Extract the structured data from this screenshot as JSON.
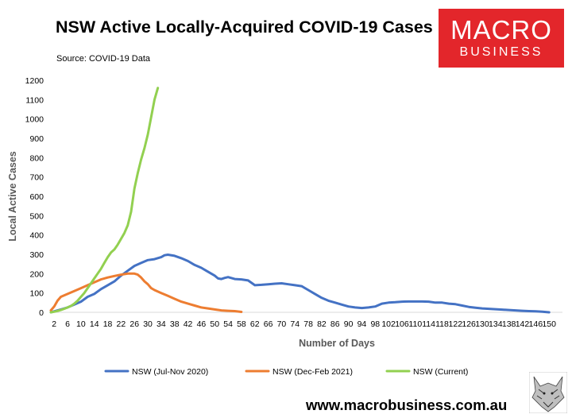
{
  "header": {
    "title": "NSW Active Locally-Acquired COVID-19 Cases",
    "source": "Source: COVID-19 Data"
  },
  "logo": {
    "line1": "MACRO",
    "line2": "BUSINESS"
  },
  "footer": {
    "url": "www.macrobusiness.com.au"
  },
  "colors": {
    "blue": "#4472c4",
    "orange": "#ed7d31",
    "green": "#92d050",
    "logo_red": "#e3262b"
  },
  "chart_data": {
    "type": "line",
    "title": "NSW Active Locally-Acquired COVID-19 Cases",
    "xlabel": "Number of Days",
    "ylabel": "Local Active Cases",
    "ylim": [
      0,
      1200
    ],
    "yticks": [
      0,
      100,
      200,
      300,
      400,
      500,
      600,
      700,
      800,
      900,
      1000,
      1100,
      1200
    ],
    "xlim": [
      1,
      154
    ],
    "xticks": [
      "2",
      "6",
      "10",
      "14",
      "18",
      "22",
      "26",
      "30",
      "34",
      "38",
      "42",
      "46",
      "50",
      "54",
      "58",
      "62",
      "66",
      "70",
      "74",
      "78",
      "82",
      "86",
      "90",
      "94",
      "98",
      "102",
      "106",
      "110",
      "114",
      "118",
      "122",
      "126",
      "130",
      "134",
      "138",
      "142",
      "146",
      "150"
    ],
    "grid": false,
    "legend": "bottom",
    "series": [
      {
        "name": "NSW (Jul-Nov 2020)",
        "color": "#4472c4",
        "points": [
          [
            1,
            0
          ],
          [
            2,
            5
          ],
          [
            4,
            15
          ],
          [
            6,
            25
          ],
          [
            8,
            40
          ],
          [
            10,
            55
          ],
          [
            12,
            80
          ],
          [
            14,
            95
          ],
          [
            16,
            120
          ],
          [
            18,
            140
          ],
          [
            20,
            160
          ],
          [
            22,
            190
          ],
          [
            24,
            215
          ],
          [
            26,
            240
          ],
          [
            28,
            255
          ],
          [
            30,
            270
          ],
          [
            32,
            275
          ],
          [
            34,
            285
          ],
          [
            35,
            295
          ],
          [
            36,
            298
          ],
          [
            38,
            292
          ],
          [
            40,
            280
          ],
          [
            42,
            265
          ],
          [
            44,
            245
          ],
          [
            46,
            230
          ],
          [
            48,
            210
          ],
          [
            50,
            190
          ],
          [
            51,
            175
          ],
          [
            52,
            172
          ],
          [
            53,
            178
          ],
          [
            54,
            182
          ],
          [
            56,
            172
          ],
          [
            58,
            170
          ],
          [
            60,
            165
          ],
          [
            62,
            140
          ],
          [
            64,
            142
          ],
          [
            66,
            145
          ],
          [
            68,
            148
          ],
          [
            70,
            150
          ],
          [
            72,
            145
          ],
          [
            74,
            140
          ],
          [
            76,
            135
          ],
          [
            78,
            115
          ],
          [
            80,
            95
          ],
          [
            82,
            75
          ],
          [
            84,
            60
          ],
          [
            86,
            50
          ],
          [
            88,
            40
          ],
          [
            90,
            30
          ],
          [
            92,
            25
          ],
          [
            94,
            22
          ],
          [
            96,
            25
          ],
          [
            98,
            30
          ],
          [
            100,
            45
          ],
          [
            102,
            50
          ],
          [
            104,
            52
          ],
          [
            106,
            55
          ],
          [
            108,
            56
          ],
          [
            110,
            56
          ],
          [
            112,
            56
          ],
          [
            114,
            55
          ],
          [
            116,
            50
          ],
          [
            118,
            50
          ],
          [
            120,
            45
          ],
          [
            122,
            42
          ],
          [
            124,
            35
          ],
          [
            126,
            28
          ],
          [
            128,
            24
          ],
          [
            130,
            20
          ],
          [
            132,
            18
          ],
          [
            134,
            16
          ],
          [
            136,
            14
          ],
          [
            138,
            12
          ],
          [
            140,
            10
          ],
          [
            142,
            8
          ],
          [
            144,
            6
          ],
          [
            146,
            5
          ],
          [
            148,
            3
          ],
          [
            150,
            0
          ]
        ]
      },
      {
        "name": "NSW (Dec-Feb 2021)",
        "color": "#ed7d31",
        "points": [
          [
            1,
            10
          ],
          [
            2,
            30
          ],
          [
            3,
            60
          ],
          [
            4,
            80
          ],
          [
            6,
            95
          ],
          [
            8,
            110
          ],
          [
            10,
            125
          ],
          [
            12,
            140
          ],
          [
            14,
            155
          ],
          [
            16,
            170
          ],
          [
            18,
            180
          ],
          [
            20,
            188
          ],
          [
            22,
            195
          ],
          [
            24,
            200
          ],
          [
            26,
            200
          ],
          [
            27,
            195
          ],
          [
            28,
            180
          ],
          [
            29,
            160
          ],
          [
            30,
            145
          ],
          [
            31,
            125
          ],
          [
            32,
            115
          ],
          [
            34,
            100
          ],
          [
            36,
            85
          ],
          [
            38,
            70
          ],
          [
            40,
            55
          ],
          [
            42,
            45
          ],
          [
            44,
            35
          ],
          [
            46,
            25
          ],
          [
            48,
            20
          ],
          [
            50,
            15
          ],
          [
            52,
            10
          ],
          [
            54,
            8
          ],
          [
            56,
            6
          ],
          [
            58,
            2
          ]
        ]
      },
      {
        "name": "NSW (Current)",
        "color": "#92d050",
        "points": [
          [
            1,
            0
          ],
          [
            2,
            3
          ],
          [
            3,
            7
          ],
          [
            4,
            12
          ],
          [
            5,
            18
          ],
          [
            6,
            25
          ],
          [
            7,
            33
          ],
          [
            8,
            45
          ],
          [
            9,
            60
          ],
          [
            10,
            80
          ],
          [
            11,
            100
          ],
          [
            12,
            125
          ],
          [
            13,
            150
          ],
          [
            14,
            175
          ],
          [
            15,
            200
          ],
          [
            16,
            225
          ],
          [
            17,
            255
          ],
          [
            18,
            285
          ],
          [
            19,
            310
          ],
          [
            20,
            325
          ],
          [
            21,
            350
          ],
          [
            22,
            380
          ],
          [
            23,
            410
          ],
          [
            24,
            450
          ],
          [
            25,
            520
          ],
          [
            26,
            640
          ],
          [
            27,
            720
          ],
          [
            28,
            790
          ],
          [
            29,
            850
          ],
          [
            30,
            920
          ],
          [
            31,
            1010
          ],
          [
            32,
            1100
          ],
          [
            33,
            1160
          ]
        ]
      }
    ]
  }
}
